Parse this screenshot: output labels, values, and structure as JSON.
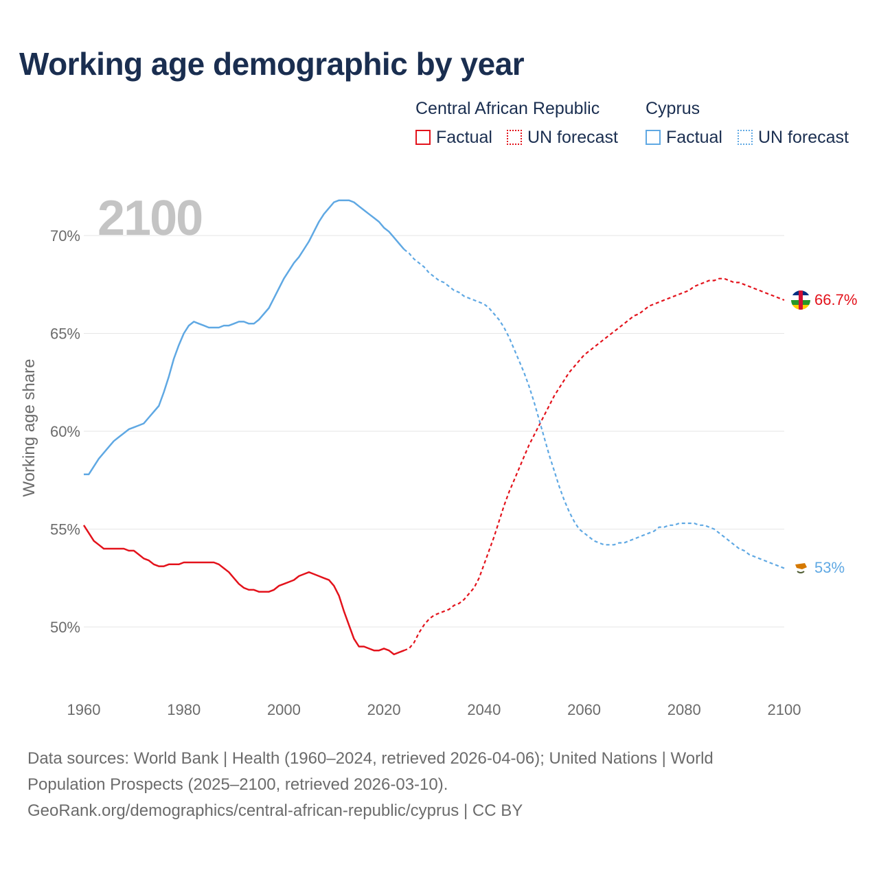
{
  "title": "Working age demographic by year",
  "year_watermark": "2100",
  "legend": {
    "groups": [
      {
        "name": "Central African Republic",
        "color": "#e3121b",
        "items": [
          {
            "label": "Factual",
            "style": "solid"
          },
          {
            "label": "UN forecast",
            "style": "dotted"
          }
        ]
      },
      {
        "name": "Cyprus",
        "color": "#5fa8e3",
        "items": [
          {
            "label": "Factual",
            "style": "solid"
          },
          {
            "label": "UN forecast",
            "style": "dotted"
          }
        ]
      }
    ]
  },
  "end_labels": {
    "car": "66.7%",
    "cyprus": "53%"
  },
  "source": {
    "line1": "Data sources: World Bank | Health (1960–2024, retrieved 2026-04-06); United Nations | World",
    "line2": "Population Prospects (2025–2100, retrieved 2026-03-10).",
    "line3": "GeoRank.org/demographics/central-african-republic/cyprus | CC BY"
  },
  "colors": {
    "car": "#e3121b",
    "cyprus": "#5fa8e3",
    "title": "#1a2e50",
    "axis_text": "#6b6b6b",
    "grid": "#e6e6e6",
    "watermark": "#c4c4c4"
  },
  "chart_data": {
    "type": "line",
    "title": "Working age demographic by year",
    "xlabel": "",
    "ylabel": "Working age share",
    "xlim": [
      1960,
      2100
    ],
    "ylim": [
      47,
      72.5
    ],
    "x_ticks": [
      1960,
      1980,
      2000,
      2020,
      2040,
      2060,
      2080,
      2100
    ],
    "x_tick_labels": [
      "1960",
      "1980",
      "2000",
      "2020",
      "2040",
      "2060",
      "2080",
      "2100"
    ],
    "y_ticks": [
      50,
      55,
      60,
      65,
      70
    ],
    "y_tick_labels": [
      "50%",
      "55%",
      "60%",
      "65%",
      "70%"
    ],
    "forecast_start": 2024,
    "series": [
      {
        "name": "Central African Republic",
        "key": "car",
        "points": [
          [
            1960,
            55.2
          ],
          [
            1961,
            54.8
          ],
          [
            1962,
            54.4
          ],
          [
            1963,
            54.2
          ],
          [
            1964,
            54.0
          ],
          [
            1965,
            54.0
          ],
          [
            1966,
            54.0
          ],
          [
            1967,
            54.0
          ],
          [
            1968,
            54.0
          ],
          [
            1969,
            53.9
          ],
          [
            1970,
            53.9
          ],
          [
            1971,
            53.7
          ],
          [
            1972,
            53.5
          ],
          [
            1973,
            53.4
          ],
          [
            1974,
            53.2
          ],
          [
            1975,
            53.1
          ],
          [
            1976,
            53.1
          ],
          [
            1977,
            53.2
          ],
          [
            1978,
            53.2
          ],
          [
            1979,
            53.2
          ],
          [
            1980,
            53.3
          ],
          [
            1981,
            53.3
          ],
          [
            1982,
            53.3
          ],
          [
            1983,
            53.3
          ],
          [
            1984,
            53.3
          ],
          [
            1985,
            53.3
          ],
          [
            1986,
            53.3
          ],
          [
            1987,
            53.2
          ],
          [
            1988,
            53.0
          ],
          [
            1989,
            52.8
          ],
          [
            1990,
            52.5
          ],
          [
            1991,
            52.2
          ],
          [
            1992,
            52.0
          ],
          [
            1993,
            51.9
          ],
          [
            1994,
            51.9
          ],
          [
            1995,
            51.8
          ],
          [
            1996,
            51.8
          ],
          [
            1997,
            51.8
          ],
          [
            1998,
            51.9
          ],
          [
            1999,
            52.1
          ],
          [
            2000,
            52.2
          ],
          [
            2001,
            52.3
          ],
          [
            2002,
            52.4
          ],
          [
            2003,
            52.6
          ],
          [
            2004,
            52.7
          ],
          [
            2005,
            52.8
          ],
          [
            2006,
            52.7
          ],
          [
            2007,
            52.6
          ],
          [
            2008,
            52.5
          ],
          [
            2009,
            52.4
          ],
          [
            2010,
            52.1
          ],
          [
            2011,
            51.6
          ],
          [
            2012,
            50.8
          ],
          [
            2013,
            50.1
          ],
          [
            2014,
            49.4
          ],
          [
            2015,
            49.0
          ],
          [
            2016,
            49.0
          ],
          [
            2017,
            48.9
          ],
          [
            2018,
            48.8
          ],
          [
            2019,
            48.8
          ],
          [
            2020,
            48.9
          ],
          [
            2021,
            48.8
          ],
          [
            2022,
            48.6
          ],
          [
            2023,
            48.7
          ],
          [
            2024,
            48.8
          ],
          [
            2025,
            48.9
          ],
          [
            2026,
            49.2
          ],
          [
            2027,
            49.7
          ],
          [
            2028,
            50.1
          ],
          [
            2029,
            50.4
          ],
          [
            2030,
            50.6
          ],
          [
            2031,
            50.7
          ],
          [
            2032,
            50.8
          ],
          [
            2033,
            50.9
          ],
          [
            2034,
            51.1
          ],
          [
            2035,
            51.2
          ],
          [
            2036,
            51.4
          ],
          [
            2037,
            51.7
          ],
          [
            2038,
            52.0
          ],
          [
            2039,
            52.5
          ],
          [
            2040,
            53.2
          ],
          [
            2041,
            53.9
          ],
          [
            2042,
            54.6
          ],
          [
            2043,
            55.4
          ],
          [
            2044,
            56.2
          ],
          [
            2045,
            56.9
          ],
          [
            2046,
            57.5
          ],
          [
            2047,
            58.1
          ],
          [
            2048,
            58.7
          ],
          [
            2049,
            59.3
          ],
          [
            2050,
            59.8
          ],
          [
            2051,
            60.3
          ],
          [
            2052,
            60.8
          ],
          [
            2053,
            61.3
          ],
          [
            2054,
            61.8
          ],
          [
            2055,
            62.2
          ],
          [
            2056,
            62.6
          ],
          [
            2057,
            63.0
          ],
          [
            2058,
            63.3
          ],
          [
            2059,
            63.6
          ],
          [
            2060,
            63.9
          ],
          [
            2061,
            64.1
          ],
          [
            2062,
            64.3
          ],
          [
            2063,
            64.5
          ],
          [
            2064,
            64.7
          ],
          [
            2065,
            64.9
          ],
          [
            2066,
            65.1
          ],
          [
            2067,
            65.3
          ],
          [
            2068,
            65.5
          ],
          [
            2069,
            65.7
          ],
          [
            2070,
            65.9
          ],
          [
            2071,
            66.0
          ],
          [
            2072,
            66.2
          ],
          [
            2073,
            66.4
          ],
          [
            2074,
            66.5
          ],
          [
            2075,
            66.6
          ],
          [
            2076,
            66.7
          ],
          [
            2077,
            66.8
          ],
          [
            2078,
            66.9
          ],
          [
            2079,
            67.0
          ],
          [
            2080,
            67.1
          ],
          [
            2081,
            67.2
          ],
          [
            2082,
            67.4
          ],
          [
            2083,
            67.5
          ],
          [
            2084,
            67.6
          ],
          [
            2085,
            67.7
          ],
          [
            2086,
            67.7
          ],
          [
            2087,
            67.8
          ],
          [
            2088,
            67.8
          ],
          [
            2089,
            67.7
          ],
          [
            2090,
            67.6
          ],
          [
            2091,
            67.6
          ],
          [
            2092,
            67.5
          ],
          [
            2093,
            67.4
          ],
          [
            2094,
            67.3
          ],
          [
            2095,
            67.2
          ],
          [
            2096,
            67.1
          ],
          [
            2097,
            67.0
          ],
          [
            2098,
            66.9
          ],
          [
            2099,
            66.8
          ],
          [
            2100,
            66.7
          ]
        ]
      },
      {
        "name": "Cyprus",
        "key": "cyprus",
        "points": [
          [
            1960,
            57.8
          ],
          [
            1961,
            57.8
          ],
          [
            1962,
            58.2
          ],
          [
            1963,
            58.6
          ],
          [
            1964,
            58.9
          ],
          [
            1965,
            59.2
          ],
          [
            1966,
            59.5
          ],
          [
            1967,
            59.7
          ],
          [
            1968,
            59.9
          ],
          [
            1969,
            60.1
          ],
          [
            1970,
            60.2
          ],
          [
            1971,
            60.3
          ],
          [
            1972,
            60.4
          ],
          [
            1973,
            60.7
          ],
          [
            1974,
            61.0
          ],
          [
            1975,
            61.3
          ],
          [
            1976,
            62.0
          ],
          [
            1977,
            62.8
          ],
          [
            1978,
            63.7
          ],
          [
            1979,
            64.4
          ],
          [
            1980,
            65.0
          ],
          [
            1981,
            65.4
          ],
          [
            1982,
            65.6
          ],
          [
            1983,
            65.5
          ],
          [
            1984,
            65.4
          ],
          [
            1985,
            65.3
          ],
          [
            1986,
            65.3
          ],
          [
            1987,
            65.3
          ],
          [
            1988,
            65.4
          ],
          [
            1989,
            65.4
          ],
          [
            1990,
            65.5
          ],
          [
            1991,
            65.6
          ],
          [
            1992,
            65.6
          ],
          [
            1993,
            65.5
          ],
          [
            1994,
            65.5
          ],
          [
            1995,
            65.7
          ],
          [
            1996,
            66.0
          ],
          [
            1997,
            66.3
          ],
          [
            1998,
            66.8
          ],
          [
            1999,
            67.3
          ],
          [
            2000,
            67.8
          ],
          [
            2001,
            68.2
          ],
          [
            2002,
            68.6
          ],
          [
            2003,
            68.9
          ],
          [
            2004,
            69.3
          ],
          [
            2005,
            69.7
          ],
          [
            2006,
            70.2
          ],
          [
            2007,
            70.7
          ],
          [
            2008,
            71.1
          ],
          [
            2009,
            71.4
          ],
          [
            2010,
            71.7
          ],
          [
            2011,
            71.8
          ],
          [
            2012,
            71.8
          ],
          [
            2013,
            71.8
          ],
          [
            2014,
            71.7
          ],
          [
            2015,
            71.5
          ],
          [
            2016,
            71.3
          ],
          [
            2017,
            71.1
          ],
          [
            2018,
            70.9
          ],
          [
            2019,
            70.7
          ],
          [
            2020,
            70.4
          ],
          [
            2021,
            70.2
          ],
          [
            2022,
            69.9
          ],
          [
            2023,
            69.6
          ],
          [
            2024,
            69.3
          ],
          [
            2025,
            69.1
          ],
          [
            2026,
            68.8
          ],
          [
            2027,
            68.6
          ],
          [
            2028,
            68.4
          ],
          [
            2029,
            68.1
          ],
          [
            2030,
            67.9
          ],
          [
            2031,
            67.7
          ],
          [
            2032,
            67.6
          ],
          [
            2033,
            67.4
          ],
          [
            2034,
            67.2
          ],
          [
            2035,
            67.1
          ],
          [
            2036,
            66.9
          ],
          [
            2037,
            66.8
          ],
          [
            2038,
            66.7
          ],
          [
            2039,
            66.6
          ],
          [
            2040,
            66.5
          ],
          [
            2041,
            66.3
          ],
          [
            2042,
            66.0
          ],
          [
            2043,
            65.7
          ],
          [
            2044,
            65.3
          ],
          [
            2045,
            64.8
          ],
          [
            2046,
            64.2
          ],
          [
            2047,
            63.6
          ],
          [
            2048,
            63.0
          ],
          [
            2049,
            62.3
          ],
          [
            2050,
            61.5
          ],
          [
            2051,
            60.6
          ],
          [
            2052,
            59.7
          ],
          [
            2053,
            58.8
          ],
          [
            2054,
            58.0
          ],
          [
            2055,
            57.2
          ],
          [
            2056,
            56.5
          ],
          [
            2057,
            55.9
          ],
          [
            2058,
            55.4
          ],
          [
            2059,
            55.0
          ],
          [
            2060,
            54.8
          ],
          [
            2061,
            54.6
          ],
          [
            2062,
            54.4
          ],
          [
            2063,
            54.3
          ],
          [
            2064,
            54.2
          ],
          [
            2065,
            54.2
          ],
          [
            2066,
            54.2
          ],
          [
            2067,
            54.3
          ],
          [
            2068,
            54.3
          ],
          [
            2069,
            54.4
          ],
          [
            2070,
            54.5
          ],
          [
            2071,
            54.6
          ],
          [
            2072,
            54.7
          ],
          [
            2073,
            54.8
          ],
          [
            2074,
            54.9
          ],
          [
            2075,
            55.1
          ],
          [
            2076,
            55.1
          ],
          [
            2077,
            55.2
          ],
          [
            2078,
            55.2
          ],
          [
            2079,
            55.3
          ],
          [
            2080,
            55.3
          ],
          [
            2081,
            55.3
          ],
          [
            2082,
            55.3
          ],
          [
            2083,
            55.2
          ],
          [
            2084,
            55.2
          ],
          [
            2085,
            55.1
          ],
          [
            2086,
            55.0
          ],
          [
            2087,
            54.8
          ],
          [
            2088,
            54.6
          ],
          [
            2089,
            54.4
          ],
          [
            2090,
            54.2
          ],
          [
            2091,
            54.0
          ],
          [
            2092,
            53.9
          ],
          [
            2093,
            53.7
          ],
          [
            2094,
            53.6
          ],
          [
            2095,
            53.5
          ],
          [
            2096,
            53.4
          ],
          [
            2097,
            53.3
          ],
          [
            2098,
            53.2
          ],
          [
            2099,
            53.1
          ],
          [
            2100,
            53.0
          ]
        ]
      }
    ]
  }
}
